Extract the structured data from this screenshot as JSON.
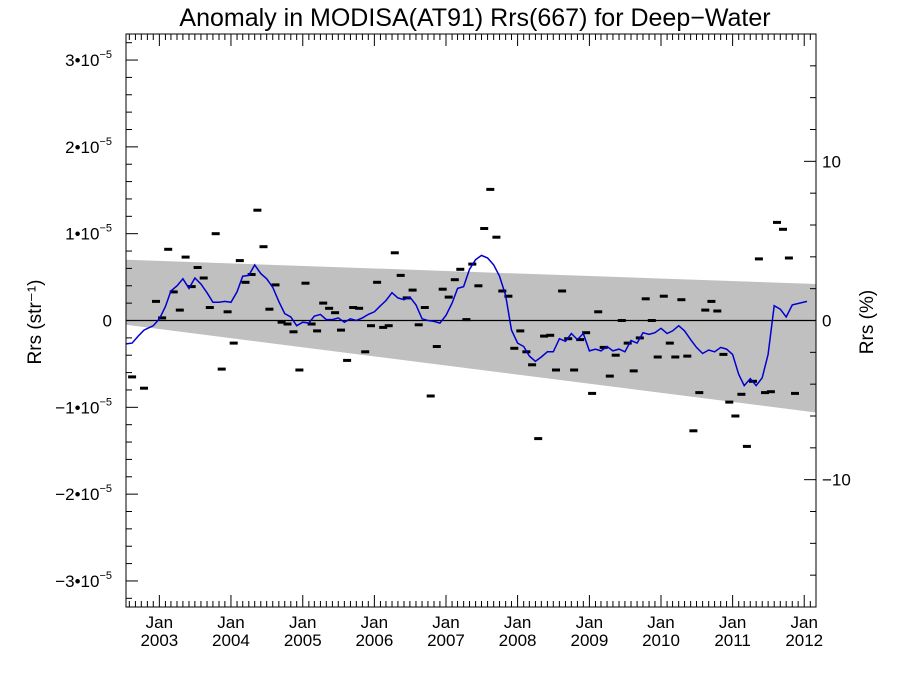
{
  "chart_data": {
    "type": "scatter",
    "title": "Anomaly in MODISA(AT91) Rrs(667) for Deep−Water",
    "ylabel": "Rrs (str⁻¹)",
    "ylabel_right": "Rrs (%)",
    "xlim": [
      "2002-07-15",
      "2012-03-01"
    ],
    "ylim": [
      -3.3e-05,
      3.3e-05
    ],
    "ylim_right": [
      -18.0,
      18.0
    ],
    "grid": false,
    "legend": "none",
    "x_ticks": [
      {
        "month": "Jan",
        "year": "2003",
        "date": "2003-01-01"
      },
      {
        "month": "Jan",
        "year": "2004",
        "date": "2004-01-01"
      },
      {
        "month": "Jan",
        "year": "2005",
        "date": "2005-01-01"
      },
      {
        "month": "Jan",
        "year": "2006",
        "date": "2006-01-01"
      },
      {
        "month": "Jan",
        "year": "2007",
        "date": "2007-01-01"
      },
      {
        "month": "Jan",
        "year": "2008",
        "date": "2008-01-01"
      },
      {
        "month": "Jan",
        "year": "2009",
        "date": "2009-01-01"
      },
      {
        "month": "Jan",
        "year": "2010",
        "date": "2010-01-01"
      },
      {
        "month": "Jan",
        "year": "2011",
        "date": "2011-01-01"
      },
      {
        "month": "Jan",
        "year": "2012",
        "date": "2012-01-01"
      }
    ],
    "y_ticks": [
      {
        "value": 3e-05,
        "mant": "3",
        "exp": "−5"
      },
      {
        "value": 2e-05,
        "mant": "2",
        "exp": "−5"
      },
      {
        "value": 1e-05,
        "mant": "1",
        "exp": "−5"
      },
      {
        "value": 0,
        "mant": "0",
        "exp": ""
      },
      {
        "value": -1e-05,
        "mant": "−1",
        "exp": "−5"
      },
      {
        "value": -2e-05,
        "mant": "−2",
        "exp": "−5"
      },
      {
        "value": -3e-05,
        "mant": "−3",
        "exp": "−5"
      }
    ],
    "y_ticks_right": [
      {
        "value": 10,
        "label": "10"
      },
      {
        "value": 0,
        "label": "0"
      },
      {
        "value": -10,
        "label": "−10"
      }
    ],
    "colors": {
      "line": "#0000d0",
      "band": "#c0c0c0",
      "points": "#000000",
      "zero_line": "#000000"
    },
    "band": {
      "upper": [
        [
          "2002-07-15",
          7e-06
        ],
        [
          "2012-03-01",
          4.2e-06
        ]
      ],
      "lower": [
        [
          "2002-07-15",
          -5e-07
        ],
        [
          "2012-03-01",
          -1.06e-05
        ]
      ]
    },
    "points": [
      [
        "2002-08",
        -6.5e-06
      ],
      [
        "2002-10",
        -7.8e-06
      ],
      [
        "2002-12",
        2.2e-06
      ],
      [
        "2003-01",
        3e-07
      ],
      [
        "2003-02",
        8.2e-06
      ],
      [
        "2003-03",
        3.3e-06
      ],
      [
        "2003-04",
        1.2e-06
      ],
      [
        "2003-05",
        7.3e-06
      ],
      [
        "2003-06",
        3.9e-06
      ],
      [
        "2003-07",
        6.1e-06
      ],
      [
        "2003-08",
        4.9e-06
      ],
      [
        "2003-09",
        1.5e-06
      ],
      [
        "2003-10",
        1e-05
      ],
      [
        "2003-11",
        -5.6e-06
      ],
      [
        "2003-12",
        1e-06
      ],
      [
        "2004-01",
        -2.6e-06
      ],
      [
        "2004-02",
        6.9e-06
      ],
      [
        "2004-03",
        4.4e-06
      ],
      [
        "2004-04",
        5.3e-06
      ],
      [
        "2004-05",
        1.27e-05
      ],
      [
        "2004-06",
        8.5e-06
      ],
      [
        "2004-07",
        1.3e-06
      ],
      [
        "2004-08",
        4.1e-06
      ],
      [
        "2004-09",
        -2e-07
      ],
      [
        "2004-10",
        -4e-07
      ],
      [
        "2004-11",
        -1.3e-06
      ],
      [
        "2004-12",
        -5.7e-06
      ],
      [
        "2005-01",
        4.3e-06
      ],
      [
        "2005-02",
        -4e-07
      ],
      [
        "2005-03",
        -1.2e-06
      ],
      [
        "2005-04",
        2e-06
      ],
      [
        "2005-05",
        1.4e-06
      ],
      [
        "2005-06",
        9e-07
      ],
      [
        "2005-07",
        -1.1e-06
      ],
      [
        "2005-08",
        -4.6e-06
      ],
      [
        "2005-09",
        1.5e-06
      ],
      [
        "2005-10",
        1.4e-06
      ],
      [
        "2005-11",
        -3.6e-06
      ],
      [
        "2005-12",
        -6e-07
      ],
      [
        "2006-01",
        4.4e-06
      ],
      [
        "2006-02",
        -8e-07
      ],
      [
        "2006-03",
        -6e-07
      ],
      [
        "2006-04",
        7.8e-06
      ],
      [
        "2006-05",
        5.2e-06
      ],
      [
        "2006-06",
        2.6e-06
      ],
      [
        "2006-07",
        3.5e-06
      ],
      [
        "2006-08",
        -5e-07
      ],
      [
        "2006-09",
        1.5e-06
      ],
      [
        "2006-10",
        -8.7e-06
      ],
      [
        "2006-11",
        -3e-06
      ],
      [
        "2006-12",
        3.6e-06
      ],
      [
        "2007-01",
        2.7e-06
      ],
      [
        "2007-02",
        4.7e-06
      ],
      [
        "2007-03",
        5.9e-06
      ],
      [
        "2007-04",
        1e-07
      ],
      [
        "2007-05",
        6.5e-06
      ],
      [
        "2007-06",
        4e-06
      ],
      [
        "2007-07",
        1.06e-05
      ],
      [
        "2007-08",
        1.51e-05
      ],
      [
        "2007-09",
        9.6e-06
      ],
      [
        "2007-10",
        3.4e-06
      ],
      [
        "2007-11",
        2.8e-06
      ],
      [
        "2007-12",
        -3.2e-06
      ],
      [
        "2008-01",
        -1.2e-06
      ],
      [
        "2008-02",
        -3.6e-06
      ],
      [
        "2008-03",
        -5.1e-06
      ],
      [
        "2008-04",
        -1.36e-05
      ],
      [
        "2008-05",
        -1.8e-06
      ],
      [
        "2008-06",
        -1.7e-06
      ],
      [
        "2008-07",
        -5.7e-06
      ],
      [
        "2008-08",
        3.4e-06
      ],
      [
        "2008-09",
        -2.1e-06
      ],
      [
        "2008-10",
        -5.7e-06
      ],
      [
        "2008-11",
        -2.2e-06
      ],
      [
        "2008-12",
        -1.4e-06
      ],
      [
        "2009-01",
        -8.4e-06
      ],
      [
        "2009-02",
        1e-06
      ],
      [
        "2009-03",
        -3.1e-06
      ],
      [
        "2009-04",
        -6.4e-06
      ],
      [
        "2009-05",
        -4e-06
      ],
      [
        "2009-06",
        0.0
      ],
      [
        "2009-07",
        -2.6e-06
      ],
      [
        "2009-08",
        -5.8e-06
      ],
      [
        "2009-09",
        -2e-06
      ],
      [
        "2009-10",
        2.5e-06
      ],
      [
        "2009-11",
        0.0
      ],
      [
        "2009-12",
        -4.2e-06
      ],
      [
        "2010-01",
        2.8e-06
      ],
      [
        "2010-02",
        -2.6e-06
      ],
      [
        "2010-03",
        -4.2e-06
      ],
      [
        "2010-04",
        2.4e-06
      ],
      [
        "2010-05",
        -4.1e-06
      ],
      [
        "2010-06",
        -1.27e-05
      ],
      [
        "2010-07",
        -8.3e-06
      ],
      [
        "2010-08",
        1.2e-06
      ],
      [
        "2010-09",
        2.2e-06
      ],
      [
        "2010-10",
        1.1e-06
      ],
      [
        "2010-11",
        -3.9e-06
      ],
      [
        "2010-12",
        -9.4e-06
      ],
      [
        "2011-01",
        -1.1e-05
      ],
      [
        "2011-02",
        -8.5e-06
      ],
      [
        "2011-03",
        -1.45e-05
      ],
      [
        "2011-04",
        -7e-06
      ],
      [
        "2011-05",
        7.1e-06
      ],
      [
        "2011-06",
        -8.3e-06
      ],
      [
        "2011-07",
        -8.2e-06
      ],
      [
        "2011-08",
        1.13e-05
      ],
      [
        "2011-09",
        1.05e-05
      ],
      [
        "2011-10",
        7.2e-06
      ],
      [
        "2011-11",
        -8.4e-06
      ]
    ],
    "line": [
      [
        "2002-07-15",
        -2.7e-06
      ],
      [
        "2002-08-15",
        -2.6e-06
      ],
      [
        "2002-09-15",
        -1.8e-06
      ],
      [
        "2002-10-15",
        -1.1e-06
      ],
      [
        "2002-12-01",
        -6e-07
      ],
      [
        "2003-01-01",
        2e-07
      ],
      [
        "2003-02-01",
        1.6e-06
      ],
      [
        "2003-03-01",
        3.4e-06
      ],
      [
        "2003-04-01",
        4e-06
      ],
      [
        "2003-05-01",
        4.8e-06
      ],
      [
        "2003-06-01",
        3.7e-06
      ],
      [
        "2003-07-01",
        4.9e-06
      ],
      [
        "2003-08-01",
        4.2e-06
      ],
      [
        "2003-09-01",
        3.2e-06
      ],
      [
        "2003-10-01",
        2.1e-06
      ],
      [
        "2003-11-01",
        2.1e-06
      ],
      [
        "2003-12-01",
        2.2e-06
      ],
      [
        "2004-01-01",
        2.1e-06
      ],
      [
        "2004-02-01",
        3.3e-06
      ],
      [
        "2004-03-01",
        5.1e-06
      ],
      [
        "2004-04-01",
        5.2e-06
      ],
      [
        "2004-05-01",
        6.4e-06
      ],
      [
        "2004-06-01",
        5.4e-06
      ],
      [
        "2004-07-01",
        4.8e-06
      ],
      [
        "2004-08-01",
        3.8e-06
      ],
      [
        "2004-09-01",
        2.2e-06
      ],
      [
        "2004-10-01",
        8e-07
      ],
      [
        "2004-11-01",
        4e-07
      ],
      [
        "2004-12-01",
        -6e-07
      ],
      [
        "2005-01-01",
        -2e-07
      ],
      [
        "2005-02-01",
        -3e-07
      ],
      [
        "2005-03-01",
        5e-07
      ],
      [
        "2005-04-01",
        7e-07
      ],
      [
        "2005-05-01",
        1e-07
      ],
      [
        "2005-06-01",
        1e-07
      ],
      [
        "2005-07-01",
        3e-07
      ],
      [
        "2005-08-01",
        -2e-07
      ],
      [
        "2005-09-01",
        2e-07
      ],
      [
        "2005-10-01",
        0.0
      ],
      [
        "2005-11-01",
        3e-07
      ],
      [
        "2005-12-01",
        7e-07
      ],
      [
        "2006-01-01",
        1e-06
      ],
      [
        "2006-02-01",
        1.7e-06
      ],
      [
        "2006-03-01",
        2.3e-06
      ],
      [
        "2006-04-01",
        3.2e-06
      ],
      [
        "2006-05-01",
        2.6e-06
      ],
      [
        "2006-06-01",
        2.4e-06
      ],
      [
        "2006-07-01",
        2.7e-06
      ],
      [
        "2006-08-01",
        1.8e-06
      ],
      [
        "2006-09-01",
        2e-07
      ],
      [
        "2006-10-01",
        0.0
      ],
      [
        "2006-11-01",
        -1e-07
      ],
      [
        "2006-12-01",
        -3e-07
      ],
      [
        "2007-01-01",
        6e-07
      ],
      [
        "2007-02-01",
        2e-06
      ],
      [
        "2007-03-01",
        3.7e-06
      ],
      [
        "2007-04-01",
        3.9e-06
      ],
      [
        "2007-05-01",
        5.9e-06
      ],
      [
        "2007-06-01",
        7e-06
      ],
      [
        "2007-07-01",
        7.5e-06
      ],
      [
        "2007-08-01",
        7.2e-06
      ],
      [
        "2007-09-01",
        6.4e-06
      ],
      [
        "2007-10-01",
        5.1e-06
      ],
      [
        "2007-11-01",
        2.9e-06
      ],
      [
        "2007-12-01",
        -1.1e-06
      ],
      [
        "2008-01-01",
        -2.6e-06
      ],
      [
        "2008-02-01",
        -3e-06
      ],
      [
        "2008-03-01",
        -4.1e-06
      ],
      [
        "2008-04-01",
        -4.7e-06
      ],
      [
        "2008-05-01",
        -4.2e-06
      ],
      [
        "2008-06-01",
        -3.6e-06
      ],
      [
        "2008-07-01",
        -3.6e-06
      ],
      [
        "2008-08-01",
        -2.1e-06
      ],
      [
        "2008-09-01",
        -2.4e-06
      ],
      [
        "2008-10-01",
        -1.5e-06
      ],
      [
        "2008-11-01",
        -2.2e-06
      ],
      [
        "2008-12-01",
        -1.5e-06
      ],
      [
        "2009-01-01",
        -3.5e-06
      ],
      [
        "2009-02-01",
        -3.3e-06
      ],
      [
        "2009-03-01",
        -3.5e-06
      ],
      [
        "2009-04-01",
        -3e-06
      ],
      [
        "2009-05-01",
        -3.5e-06
      ],
      [
        "2009-06-01",
        -3.3e-06
      ],
      [
        "2009-07-01",
        -3.6e-06
      ],
      [
        "2009-08-01",
        -2.3e-06
      ],
      [
        "2009-09-01",
        -2.6e-06
      ],
      [
        "2009-10-01",
        -1.4e-06
      ],
      [
        "2009-11-01",
        -1.6e-06
      ],
      [
        "2009-12-01",
        -1.4e-06
      ],
      [
        "2010-01-01",
        -9e-07
      ],
      [
        "2010-02-01",
        -1.5e-06
      ],
      [
        "2010-03-01",
        -1.2e-06
      ],
      [
        "2010-04-01",
        -6e-07
      ],
      [
        "2010-05-01",
        -1.2e-06
      ],
      [
        "2010-06-01",
        -2.2e-06
      ],
      [
        "2010-07-01",
        -3.1e-06
      ],
      [
        "2010-08-01",
        -3.8e-06
      ],
      [
        "2010-09-01",
        -3.4e-06
      ],
      [
        "2010-10-01",
        -3.6e-06
      ],
      [
        "2010-11-01",
        -3.1e-06
      ],
      [
        "2010-12-01",
        -3.3e-06
      ],
      [
        "2011-01-01",
        -3.9e-06
      ],
      [
        "2011-02-01",
        -6.2e-06
      ],
      [
        "2011-03-01",
        -7.5e-06
      ],
      [
        "2011-04-01",
        -6.7e-06
      ],
      [
        "2011-05-01",
        -7.5e-06
      ],
      [
        "2011-06-01",
        -6.6e-06
      ],
      [
        "2011-07-01",
        -3.9e-06
      ],
      [
        "2011-08-01",
        1.7e-06
      ],
      [
        "2011-09-01",
        1.3e-06
      ],
      [
        "2011-10-01",
        4e-07
      ],
      [
        "2011-11-01",
        1.8e-06
      ],
      [
        "2012-01-15",
        2.2e-06
      ]
    ]
  }
}
